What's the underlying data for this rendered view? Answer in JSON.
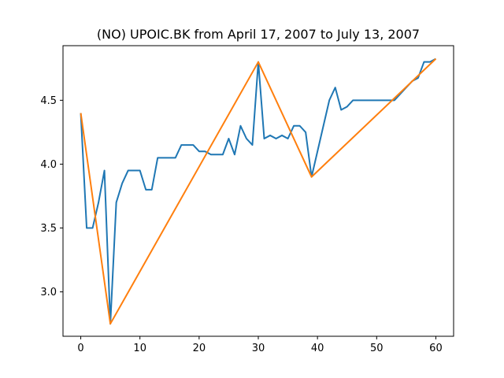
{
  "chart_data": {
    "type": "line",
    "title": "(NO) UPOIC.BK from April 17, 2007 to July 13, 2007",
    "xlabel": "",
    "ylabel": "",
    "xlim": [
      -3,
      63
    ],
    "ylim": [
      2.6525,
      4.9275
    ],
    "xticks": [
      0,
      10,
      20,
      30,
      40,
      50,
      60
    ],
    "yticks": [
      3.0,
      3.5,
      4.0,
      4.5
    ],
    "ytick_labels": [
      "3.0",
      "3.5",
      "4.0",
      "4.5"
    ],
    "grid": false,
    "series": [
      {
        "color": "#1f77b4",
        "x": [
          0,
          1,
          2,
          3,
          4,
          5,
          6,
          7,
          8,
          9,
          10,
          11,
          12,
          13,
          14,
          15,
          16,
          17,
          18,
          19,
          20,
          21,
          22,
          23,
          24,
          25,
          26,
          27,
          28,
          29,
          30,
          31,
          32,
          33,
          34,
          35,
          36,
          37,
          38,
          39,
          40,
          41,
          42,
          43,
          44,
          45,
          46,
          47,
          48,
          49,
          50,
          51,
          52,
          53,
          54,
          55,
          56,
          57,
          58,
          59,
          60
        ],
        "values": [
          4.4,
          3.5,
          3.5,
          3.7,
          3.95,
          2.75,
          3.7,
          3.85,
          3.95,
          3.95,
          3.95,
          3.8,
          3.8,
          4.05,
          4.05,
          4.05,
          4.05,
          4.15,
          4.15,
          4.15,
          4.1,
          4.1,
          4.075,
          4.075,
          4.075,
          4.2,
          4.075,
          4.3,
          4.2,
          4.15,
          4.8,
          4.2,
          4.225,
          4.2,
          4.225,
          4.2,
          4.3,
          4.3,
          4.25,
          3.9,
          4.1,
          4.3,
          4.5,
          4.6,
          4.425,
          4.45,
          4.5,
          4.5,
          4.5,
          4.5,
          4.5,
          4.5,
          4.5,
          4.5,
          4.55,
          4.6,
          4.65,
          4.675,
          4.8,
          4.8,
          4.825
        ]
      },
      {
        "color": "#ff7f0e",
        "x": [
          0,
          5,
          30,
          39,
          60
        ],
        "values": [
          4.4,
          2.75,
          4.8,
          3.9,
          4.825
        ]
      }
    ]
  }
}
